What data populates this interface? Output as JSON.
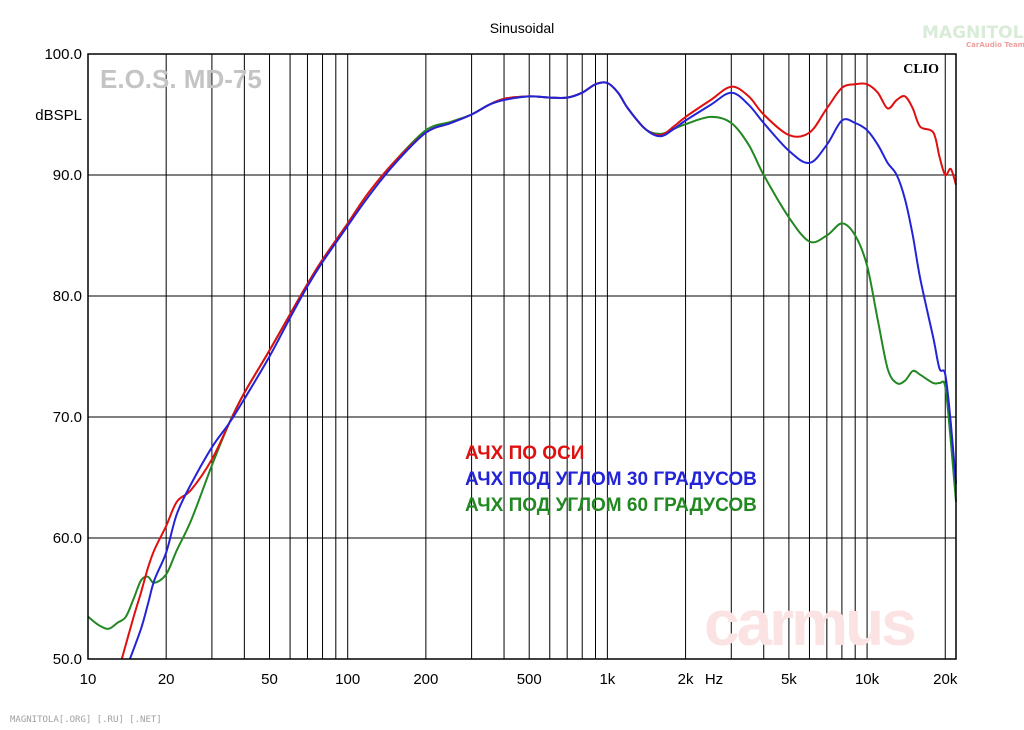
{
  "chart_data": {
    "type": "line",
    "title": "Sinusoidal",
    "ylabel": "dBSPL",
    "xunit": "Hz",
    "brand_text": "E.O.S. MD-75",
    "software_label": "CLIO",
    "watermark_top": "MAGNITOLA",
    "watermark_top_sub": "CarAudio Team",
    "watermark_center": "carmus",
    "footer_text": "MAGNITOLA[.ORG] [.RU] [.NET]",
    "x_scale": "log",
    "xlim": [
      10,
      22000
    ],
    "ylim": [
      50,
      100
    ],
    "grid": true,
    "legend_position": "center",
    "x_ticks": [
      {
        "v": 10,
        "label": "10"
      },
      {
        "v": 20,
        "label": "20"
      },
      {
        "v": 50,
        "label": "50"
      },
      {
        "v": 100,
        "label": "100"
      },
      {
        "v": 200,
        "label": "200"
      },
      {
        "v": 500,
        "label": "500"
      },
      {
        "v": 1000,
        "label": "1k"
      },
      {
        "v": 2000,
        "label": "2k"
      },
      {
        "v": 5000,
        "label": "5k"
      },
      {
        "v": 10000,
        "label": "10k"
      },
      {
        "v": 20000,
        "label": "20k"
      }
    ],
    "y_ticks": [
      {
        "v": 100,
        "label": "100.0"
      },
      {
        "v": 90,
        "label": "90.0"
      },
      {
        "v": 80,
        "label": "80.0"
      },
      {
        "v": 70,
        "label": "70.0"
      },
      {
        "v": 60,
        "label": "60.0"
      },
      {
        "v": 50,
        "label": "50.0"
      }
    ],
    "series": [
      {
        "name": "АЧХ ПО ОСИ",
        "color": "#e01010",
        "x": [
          13.5,
          15,
          16,
          17,
          18,
          20,
          22,
          25,
          30,
          35,
          40,
          50,
          60,
          70,
          80,
          100,
          120,
          150,
          200,
          250,
          300,
          350,
          400,
          500,
          600,
          700,
          800,
          900,
          1000,
          1100,
          1200,
          1400,
          1600,
          1800,
          2000,
          2500,
          3000,
          3500,
          4000,
          5000,
          6000,
          7000,
          8000,
          9000,
          10000,
          11000,
          12000,
          13000,
          14000,
          15000,
          16000,
          18000,
          19000,
          20000,
          21000,
          22000
        ],
        "y": [
          50,
          53.5,
          55.5,
          57.5,
          59,
          61,
          63,
          64,
          66.5,
          69.5,
          72,
          75.5,
          78.5,
          81,
          83,
          86,
          88.5,
          91,
          93.5,
          94.3,
          95,
          95.8,
          96.3,
          96.5,
          96.4,
          96.4,
          96.8,
          97.5,
          97.6,
          96.8,
          95.5,
          93.8,
          93.3,
          94,
          94.8,
          96.2,
          97.3,
          96.5,
          95,
          93.3,
          93.5,
          95.5,
          97.2,
          97.5,
          97.5,
          96.8,
          95.5,
          96.2,
          96.5,
          95.5,
          94,
          93.5,
          91.5,
          90,
          90.5,
          89.2
        ]
      },
      {
        "name": "АЧХ ПОД УГЛОМ 30 ГРАДУСОВ",
        "color": "#2323d8",
        "x": [
          14.5,
          16,
          17,
          18,
          20,
          22,
          25,
          30,
          35,
          40,
          50,
          60,
          70,
          80,
          100,
          120,
          150,
          200,
          250,
          300,
          350,
          400,
          500,
          600,
          700,
          800,
          900,
          1000,
          1100,
          1200,
          1400,
          1600,
          1800,
          2000,
          2500,
          3000,
          3500,
          4000,
          5000,
          6000,
          7000,
          8000,
          9000,
          10000,
          11000,
          12000,
          13000,
          14000,
          15000,
          16000,
          18000,
          19000,
          20000,
          21000,
          22000
        ],
        "y": [
          50,
          52.5,
          54.5,
          56.5,
          58.8,
          62,
          64.5,
          67.5,
          69.5,
          71.5,
          75,
          78.2,
          80.8,
          82.8,
          85.8,
          88.2,
          90.8,
          93.5,
          94.3,
          95,
          95.8,
          96.2,
          96.5,
          96.4,
          96.4,
          96.8,
          97.5,
          97.6,
          96.8,
          95.5,
          93.8,
          93.2,
          93.8,
          94.5,
          95.8,
          96.8,
          95.8,
          94.3,
          92,
          91,
          92.5,
          94.5,
          94.3,
          93.7,
          92.5,
          91,
          90,
          88,
          85,
          81.5,
          76.5,
          74,
          73.5,
          69.5,
          64.5
        ]
      },
      {
        "name": "АЧХ ПОД УГЛОМ 60 ГРАДУСОВ",
        "color": "#228822",
        "x": [
          10,
          11,
          12,
          13,
          14,
          15,
          16,
          17,
          18,
          20,
          22,
          25,
          30,
          35,
          40,
          50,
          60,
          70,
          80,
          100,
          120,
          150,
          200,
          250,
          300,
          350,
          400,
          500,
          600,
          700,
          800,
          900,
          1000,
          1100,
          1200,
          1400,
          1600,
          1800,
          2000,
          2500,
          3000,
          3500,
          4000,
          5000,
          6000,
          7000,
          8000,
          9000,
          10000,
          11000,
          12000,
          13000,
          14000,
          15000,
          16000,
          18000,
          19000,
          20000,
          21000,
          22000
        ],
        "y": [
          53.5,
          52.8,
          52.5,
          53,
          53.5,
          55,
          56.5,
          56.8,
          56.3,
          57,
          59,
          61.5,
          66,
          69.5,
          72,
          75.5,
          78.5,
          81,
          83,
          86,
          88.5,
          91,
          93.7,
          94.4,
          95,
          95.8,
          96.3,
          96.5,
          96.4,
          96.4,
          96.8,
          97.5,
          97.6,
          96.8,
          95.5,
          93.8,
          93.4,
          93.8,
          94.2,
          94.8,
          94.3,
          92.5,
          90,
          86.5,
          84.5,
          85,
          86,
          85,
          82.5,
          78,
          74,
          72.8,
          73,
          73.8,
          73.5,
          72.8,
          72.8,
          72.5,
          68,
          63
        ]
      }
    ]
  }
}
